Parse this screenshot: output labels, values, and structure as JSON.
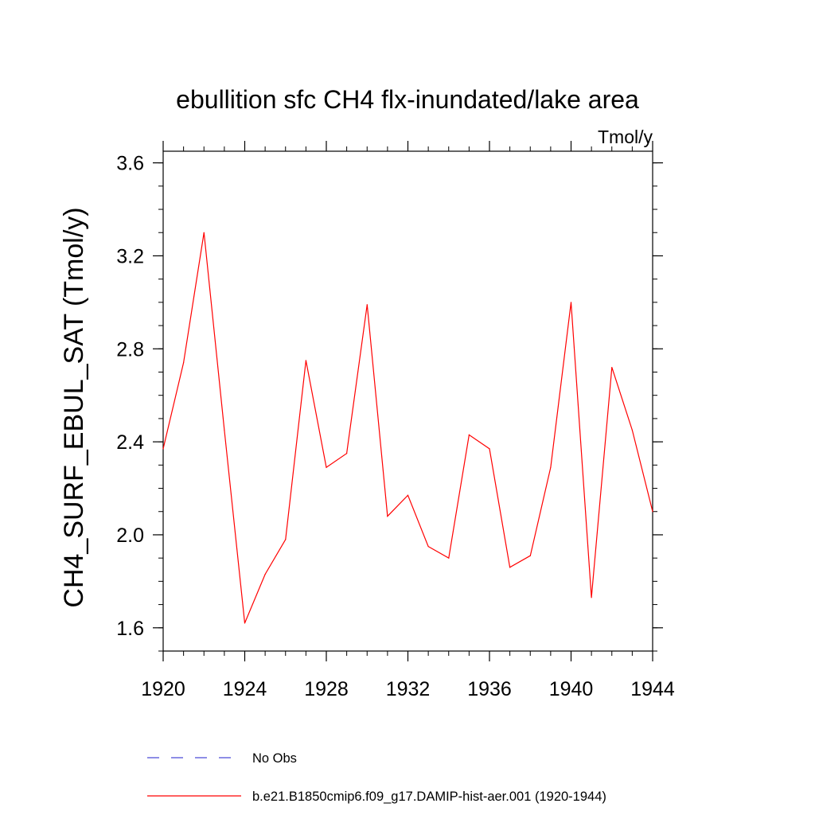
{
  "chart_data": {
    "type": "line",
    "title": "ebullition sfc CH4 flx-inundated/lake area",
    "units_label": "Tmol/y",
    "ylabel": "CH4_SURF_EBUL_SAT  (Tmol/y)",
    "xlabel": "",
    "xlim": [
      1920,
      1944
    ],
    "ylim": [
      1.5,
      3.65
    ],
    "xticks": [
      1920,
      1924,
      1928,
      1932,
      1936,
      1940,
      1944
    ],
    "yticks": [
      1.6,
      2.0,
      2.4,
      2.8,
      3.2,
      3.6
    ],
    "y_minor_step": 0.1,
    "x_minor_step": 1,
    "grid": false,
    "legend_position": "bottom",
    "x": [
      1920,
      1921,
      1922,
      1923,
      1924,
      1925,
      1926,
      1927,
      1928,
      1929,
      1930,
      1931,
      1932,
      1933,
      1934,
      1935,
      1936,
      1937,
      1938,
      1939,
      1940,
      1941,
      1942,
      1943,
      1944
    ],
    "series": [
      {
        "name": "b.e21.B1850cmip6.f09_g17.DAMIP-hist-aer.001 (1920-1944)",
        "color": "#ff0000",
        "style": "solid",
        "values": [
          2.37,
          2.74,
          3.3,
          2.45,
          1.62,
          1.83,
          1.98,
          2.75,
          2.29,
          2.35,
          2.99,
          2.08,
          2.17,
          1.95,
          1.9,
          2.43,
          2.37,
          1.86,
          1.91,
          2.29,
          3.0,
          1.73,
          2.72,
          2.45,
          2.1
        ]
      }
    ],
    "legend": [
      {
        "label": "No Obs",
        "color": "#4b4bd8",
        "style": "dashed"
      },
      {
        "label": "b.e21.B1850cmip6.f09_g17.DAMIP-hist-aer.001 (1920-1944)",
        "color": "#ff0000",
        "style": "solid"
      }
    ]
  }
}
